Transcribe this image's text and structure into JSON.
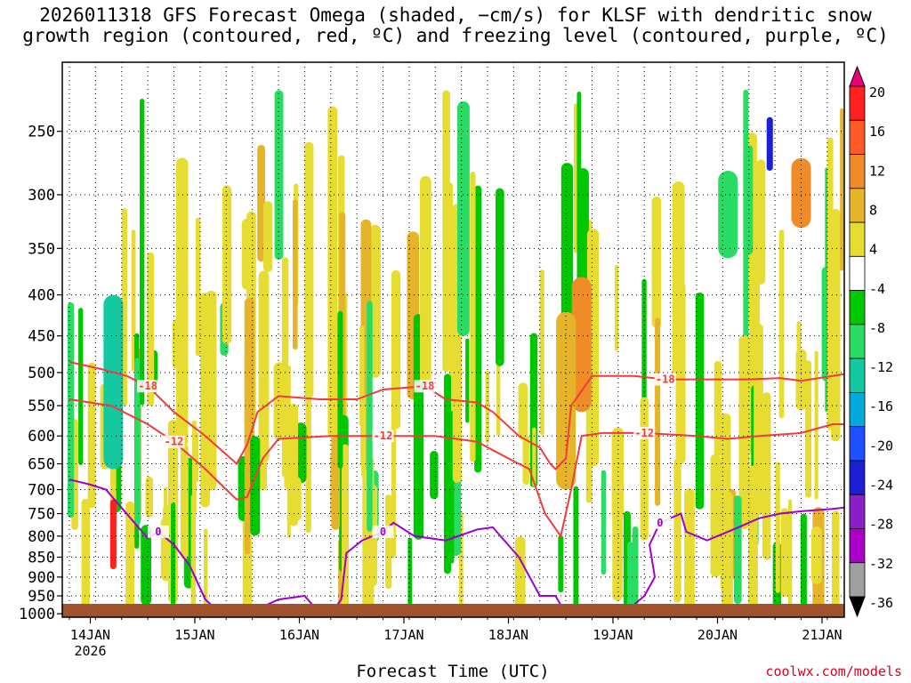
{
  "title": "2026011318 GFS Forecast Omega (shaded, −cm/s) for KLSF with dendritic snow\ngrowth region (contoured, red, ºC) and freezing level (contoured, purple, ºC)",
  "xlabel": "Forecast Time (UTC)",
  "credit": "coolwx.com/models",
  "colors": {
    "dgz_contour": "#f03c3c",
    "freezing_contour": "#a000c8",
    "ground": "#a0522d",
    "grid": "#000000"
  },
  "chart_data": {
    "type": "heatmap",
    "title": "2026011318 GFS Forecast Omega (shaded, −cm/s) for KLSF with dendritic snow growth region (contoured, red, ºC) and freezing level (contoured, purple, ºC)",
    "xlabel": "Forecast Time (UTC)",
    "ylabel": "",
    "y_scale": "log-pressure (hPa), decreasing upward",
    "ylim": [
      1010,
      205
    ],
    "xlim_days": [
      "13 Jan 18Z",
      "21 Jan 12Z"
    ],
    "y_ticks": [
      "250",
      "300",
      "350",
      "400",
      "450",
      "500",
      "550",
      "600",
      "650",
      "700",
      "750",
      "800",
      "850",
      "900",
      "950",
      "1000"
    ],
    "x_ticks": [
      "14JAN",
      "15JAN",
      "16JAN",
      "17JAN",
      "18JAN",
      "19JAN",
      "20JAN",
      "21JAN"
    ],
    "x_tick_sublabel": "2026",
    "grid": "dotted",
    "colorbar": {
      "labels": [
        "20",
        "16",
        "12",
        "8",
        "4",
        "-4",
        "-8",
        "-12",
        "-16",
        "-20",
        "-24",
        "-28",
        "-32",
        "-36"
      ],
      "colors": [
        "#e8007a",
        "#ff2020",
        "#ff5a28",
        "#f08c28",
        "#e6b428",
        "#e6dc32",
        "#ffffff",
        "#00c800",
        "#28dc64",
        "#14c8a0",
        "#00aadc",
        "#1e50ff",
        "#1e1ed2",
        "#8c1ec8",
        "#aa00c8",
        "#a0a0a0",
        "#000000"
      ]
    },
    "series": [
      {
        "name": "-18",
        "color": "#f03c3c",
        "kind": "dgz_top",
        "points": [
          [
            0.0,
            485
          ],
          [
            0.3,
            495
          ],
          [
            0.55,
            505
          ],
          [
            0.75,
            520
          ],
          [
            1.0,
            560
          ],
          [
            1.3,
            600
          ],
          [
            1.6,
            650
          ],
          [
            1.7,
            615
          ],
          [
            1.8,
            560
          ],
          [
            2.0,
            535
          ],
          [
            2.4,
            540
          ],
          [
            2.75,
            540
          ],
          [
            3.0,
            525
          ],
          [
            3.4,
            520
          ],
          [
            3.6,
            540
          ],
          [
            3.9,
            545
          ],
          [
            4.05,
            560
          ],
          [
            4.3,
            600
          ],
          [
            4.5,
            620
          ],
          [
            4.6,
            650
          ],
          [
            4.65,
            660
          ],
          [
            4.75,
            640
          ],
          [
            4.8,
            550
          ],
          [
            5.0,
            505
          ],
          [
            5.4,
            505
          ],
          [
            5.7,
            510
          ],
          [
            5.9,
            510
          ],
          [
            6.2,
            510
          ],
          [
            6.5,
            510
          ],
          [
            6.8,
            508
          ],
          [
            7.0,
            512
          ],
          [
            7.3,
            505
          ],
          [
            7.5,
            500
          ]
        ]
      },
      {
        "name": "-12",
        "color": "#f03c3c",
        "kind": "dgz_bottom",
        "points": [
          [
            0.0,
            540
          ],
          [
            0.4,
            550
          ],
          [
            0.75,
            580
          ],
          [
            1.0,
            610
          ],
          [
            1.3,
            660
          ],
          [
            1.5,
            700
          ],
          [
            1.6,
            720
          ],
          [
            1.7,
            715
          ],
          [
            1.85,
            640
          ],
          [
            2.0,
            605
          ],
          [
            2.5,
            600
          ],
          [
            2.8,
            600
          ],
          [
            3.0,
            600
          ],
          [
            3.2,
            600
          ],
          [
            3.5,
            600
          ],
          [
            3.9,
            610
          ],
          [
            4.2,
            640
          ],
          [
            4.4,
            660
          ],
          [
            4.55,
            750
          ],
          [
            4.7,
            800
          ],
          [
            4.8,
            700
          ],
          [
            4.9,
            600
          ],
          [
            5.1,
            595
          ],
          [
            5.5,
            595
          ],
          [
            6.0,
            600
          ],
          [
            6.3,
            605
          ],
          [
            6.6,
            600
          ],
          [
            7.0,
            595
          ],
          [
            7.3,
            580
          ],
          [
            7.5,
            580
          ]
        ]
      },
      {
        "name": "0",
        "color": "#a000c8",
        "kind": "freezing_level",
        "points": [
          [
            0.0,
            680
          ],
          [
            0.2,
            690
          ],
          [
            0.35,
            700
          ],
          [
            0.45,
            725
          ],
          [
            0.75,
            805
          ],
          [
            0.85,
            790
          ],
          [
            1.0,
            820
          ],
          [
            1.15,
            870
          ],
          [
            1.3,
            960
          ],
          [
            1.45,
            1000
          ],
          [
            1.7,
            1000
          ],
          [
            2.0,
            960
          ],
          [
            2.25,
            950
          ],
          [
            2.4,
            1000
          ],
          [
            2.55,
            980
          ],
          [
            2.6,
            960
          ],
          [
            2.65,
            840
          ],
          [
            2.8,
            810
          ],
          [
            3.0,
            790
          ],
          [
            3.1,
            770
          ],
          [
            3.3,
            800
          ],
          [
            3.6,
            810
          ],
          [
            3.9,
            785
          ],
          [
            4.05,
            780
          ],
          [
            4.3,
            850
          ],
          [
            4.5,
            950
          ],
          [
            4.65,
            950
          ],
          [
            4.75,
            1000
          ],
          [
            4.9,
            1000
          ],
          [
            5.0,
            1005
          ],
          [
            5.3,
            1000
          ],
          [
            5.5,
            950
          ],
          [
            5.6,
            900
          ],
          [
            5.55,
            820
          ],
          [
            5.65,
            770
          ],
          [
            5.85,
            750
          ],
          [
            5.9,
            790
          ],
          [
            6.1,
            810
          ],
          [
            6.4,
            780
          ],
          [
            6.6,
            760
          ],
          [
            6.8,
            750
          ],
          [
            7.0,
            745
          ],
          [
            7.3,
            740
          ],
          [
            7.5,
            735
          ]
        ]
      }
    ],
    "omega_regions": [
      {
        "t": 0.42,
        "p1": 450,
        "p2": 650,
        "value": -36
      },
      {
        "t": 0.42,
        "p1": 400,
        "p2": 660,
        "value": -12
      },
      {
        "t": 0.42,
        "p1": 720,
        "p2": 880,
        "value": 16
      },
      {
        "t": 6.7,
        "p1": 240,
        "p2": 280,
        "value": -24
      },
      {
        "t": 4.9,
        "p1": 380,
        "p2": 560,
        "value": 12
      },
      {
        "t": 4.75,
        "p1": 420,
        "p2": 700,
        "value": 8
      },
      {
        "t": 7.0,
        "p1": 270,
        "p2": 330,
        "value": 12
      },
      {
        "t": 6.3,
        "p1": 280,
        "p2": 360,
        "value": -8
      }
    ]
  }
}
